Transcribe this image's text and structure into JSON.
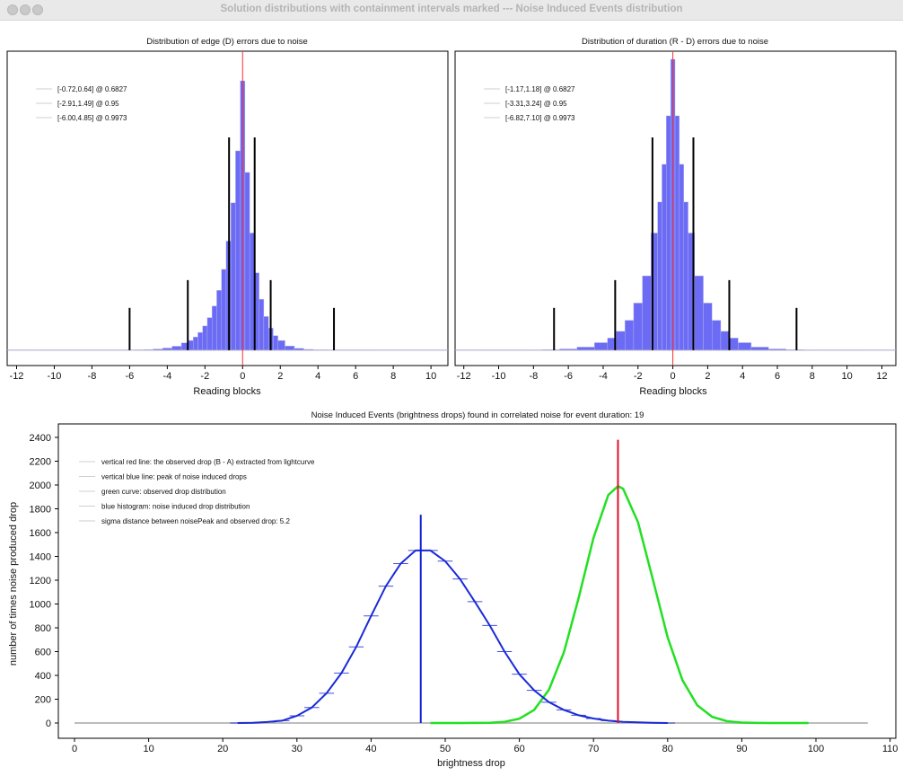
{
  "window": {
    "title": "Solution distributions with containment intervals marked --- Noise Induced Events distribution"
  },
  "chart_data": [
    {
      "type": "bar",
      "title": "Distribution of edge (D) errors due to noise",
      "xlabel": "Reading blocks",
      "ylabel": "",
      "xlim": [
        -12.5,
        10.9
      ],
      "ylim": [
        -0.057,
        1.11
      ],
      "xticks": [
        -12,
        -10,
        -8,
        -6,
        -4,
        -2,
        0,
        2,
        4,
        6,
        8,
        10
      ],
      "legend": [
        "[-0.72,0.64] @ 0.6827",
        "[-2.91,1.49] @ 0.95",
        "[-6.00,4.85] @ 0.9973"
      ],
      "legend_position": "top-left",
      "bar_color": "#6b6bf5",
      "marker_line": {
        "x": 0,
        "color": "#ff3030"
      },
      "intervals": [
        {
          "lo": -0.72,
          "hi": 0.64,
          "level": 0.6827,
          "height": 0.79
        },
        {
          "lo": -2.91,
          "hi": 1.49,
          "level": 0.95,
          "height": 0.26
        },
        {
          "lo": -6.0,
          "hi": 4.85,
          "level": 0.9973,
          "height": 0.157
        }
      ],
      "x": [
        -12,
        -10,
        -8,
        -7,
        -6,
        -5.5,
        -5,
        -4.5,
        -4,
        -3.5,
        -3,
        -2.75,
        -2.5,
        -2.25,
        -2,
        -1.75,
        -1.5,
        -1.25,
        -1,
        -0.75,
        -0.5,
        -0.25,
        0,
        0.25,
        0.5,
        0.75,
        1,
        1.25,
        1.5,
        1.75,
        2,
        2.5,
        3,
        3.5,
        4,
        5,
        6,
        8,
        10
      ],
      "values": [
        0,
        0.0001,
        0.0002,
        0.0003,
        0.0007,
        0.0013,
        0.0024,
        0.0044,
        0.008,
        0.0147,
        0.027,
        0.036,
        0.049,
        0.066,
        0.09,
        0.121,
        0.164,
        0.222,
        0.3,
        0.405,
        0.547,
        0.74,
        1.0,
        0.66,
        0.435,
        0.287,
        0.189,
        0.125,
        0.082,
        0.054,
        0.036,
        0.0155,
        0.0067,
        0.003,
        0.0013,
        0.0002,
        0.0001,
        0,
        0
      ]
    },
    {
      "type": "bar",
      "title": "Distribution of duration (R - D) errors due to noise",
      "xlabel": "Reading blocks",
      "ylabel": "",
      "xlim": [
        -12.5,
        12.8
      ],
      "ylim": [
        -0.057,
        1.11
      ],
      "xticks": [
        -12,
        -10,
        -8,
        -6,
        -4,
        -2,
        0,
        2,
        4,
        6,
        8,
        10,
        12
      ],
      "legend": [
        "[-1.17,1.18] @ 0.6827",
        "[-3.31,3.24] @ 0.95",
        "[-6.82,7.10] @ 0.9973"
      ],
      "legend_position": "top-left",
      "bar_color": "#6b6bf5",
      "marker_line": {
        "x": 0,
        "color": "#ff3030"
      },
      "intervals": [
        {
          "lo": -1.17,
          "hi": 1.18,
          "level": 0.6827,
          "height": 0.79
        },
        {
          "lo": -3.31,
          "hi": 3.24,
          "level": 0.95,
          "height": 0.26
        },
        {
          "lo": -6.82,
          "hi": 7.1,
          "level": 0.9973,
          "height": 0.157
        }
      ],
      "x": [
        -12,
        -10,
        -9,
        -8,
        -7,
        -6,
        -5,
        -4,
        -3.5,
        -3,
        -2.5,
        -2,
        -1.5,
        -1,
        -0.75,
        -0.5,
        -0.25,
        0,
        0.25,
        0.5,
        0.75,
        1,
        1.5,
        2,
        2.5,
        3,
        3.5,
        4,
        5,
        6,
        7,
        8,
        9,
        10,
        12
      ],
      "values": [
        0,
        0.0001,
        0.0003,
        0.0008,
        0.0018,
        0.0046,
        0.0115,
        0.028,
        0.045,
        0.07,
        0.111,
        0.175,
        0.276,
        0.435,
        0.55,
        0.69,
        0.87,
        1.08,
        0.87,
        0.69,
        0.55,
        0.435,
        0.276,
        0.175,
        0.111,
        0.07,
        0.045,
        0.028,
        0.0115,
        0.0046,
        0.0018,
        0.0008,
        0.0003,
        0.0001,
        0
      ]
    },
    {
      "type": "line",
      "title": "Noise Induced Events (brightness drops) found in correlated noise for event duration: 19",
      "xlabel": "brightness drop",
      "ylabel": "number of times noise produced drop",
      "xlim": [
        -2,
        110
      ],
      "ylim": [
        -130,
        2500
      ],
      "xticks": [
        0,
        10,
        20,
        30,
        40,
        50,
        60,
        70,
        80,
        90,
        100,
        110
      ],
      "yticks": [
        0,
        200,
        400,
        600,
        800,
        1000,
        1200,
        1400,
        1600,
        1800,
        2000,
        2200,
        2400
      ],
      "legend": [
        "vertical red line: the observed drop (B - A) extracted from lightcurve",
        "vertical blue line: peak of noise induced drops",
        "green curve: observed drop distribution",
        "blue histogram: noise induced drop distribution",
        "sigma distance between noisePeak and observed drop: 5.2"
      ],
      "legend_position": "top-left",
      "baseline_range": [
        0,
        107
      ],
      "observed_drop": {
        "x": 73.3,
        "top": 2380,
        "color": "#e0102a"
      },
      "noise_peak": {
        "x": 46.7,
        "top": 1750,
        "color": "#1020d0"
      },
      "series": [
        {
          "name": "blue histogram",
          "color": "#1a2ad8",
          "x": [
            22,
            24,
            26,
            28,
            30,
            32,
            34,
            36,
            38,
            40,
            42,
            44,
            46,
            48,
            50,
            52,
            54,
            56,
            58,
            60,
            62,
            64,
            66,
            68,
            70,
            72,
            74,
            76,
            78,
            80
          ],
          "values": [
            0,
            2,
            8,
            20,
            60,
            130,
            250,
            420,
            640,
            900,
            1150,
            1340,
            1450,
            1450,
            1360,
            1210,
            1020,
            820,
            600,
            410,
            275,
            175,
            110,
            65,
            38,
            20,
            10,
            5,
            2,
            0
          ]
        },
        {
          "name": "green curve",
          "color": "#22e022",
          "x": [
            48,
            50,
            52,
            54,
            56,
            58,
            60,
            62,
            64,
            66,
            68,
            70,
            72,
            73.3,
            74,
            76,
            78,
            80,
            82,
            84,
            86,
            88,
            90,
            92,
            94,
            96,
            99
          ],
          "values": [
            0,
            0,
            0,
            0.5,
            2,
            10,
            36,
            110,
            280,
            593,
            1053,
            1556,
            1916,
            1990,
            1968,
            1687,
            1207,
            720,
            360,
            149,
            52,
            15,
            4,
            1,
            0,
            0,
            0
          ]
        }
      ]
    }
  ]
}
